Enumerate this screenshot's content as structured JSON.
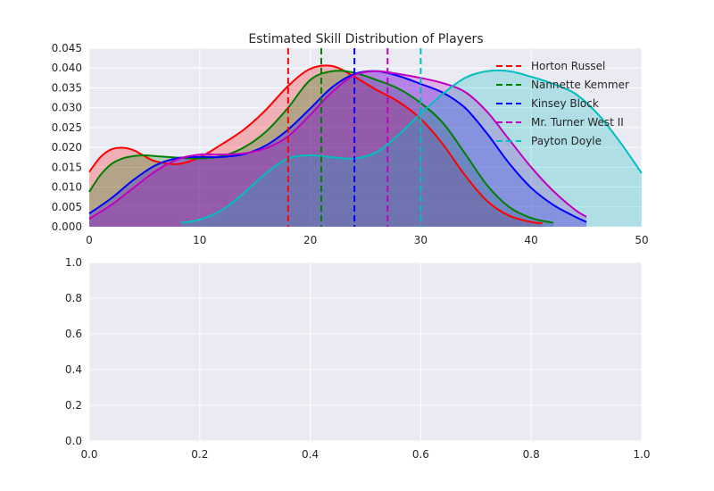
{
  "chart_data": [
    {
      "type": "area",
      "title": "Estimated Skill Distribution of Players",
      "xlabel": "",
      "ylabel": "",
      "xlim": [
        0,
        50
      ],
      "ylim": [
        0,
        0.045
      ],
      "grid": true,
      "legend_position": "top-right",
      "x_ticks": [
        0,
        10,
        20,
        30,
        40,
        50
      ],
      "x_tick_labels": [
        "0",
        "10",
        "20",
        "30",
        "40",
        "50"
      ],
      "y_ticks": [
        0,
        0.005,
        0.01,
        0.015,
        0.02,
        0.025,
        0.03,
        0.035,
        0.04,
        0.045
      ],
      "y_tick_labels": [
        "0.000",
        "0.005",
        "0.010",
        "0.015",
        "0.020",
        "0.025",
        "0.030",
        "0.035",
        "0.040",
        "0.045"
      ],
      "series": [
        {
          "name": "Horton Russel",
          "color": "#ff0000",
          "fill": "rgba(255,0,0,0.25)",
          "mean": 18,
          "x": [
            0,
            1,
            2,
            3,
            4,
            5,
            6,
            8,
            10,
            12,
            14,
            16,
            18,
            20,
            22,
            24,
            26,
            28,
            30,
            32,
            34,
            36,
            38,
            40,
            41
          ],
          "values": [
            0.0138,
            0.0175,
            0.0195,
            0.0199,
            0.0193,
            0.0178,
            0.0165,
            0.0158,
            0.0175,
            0.0208,
            0.0245,
            0.0295,
            0.0355,
            0.0398,
            0.0405,
            0.0378,
            0.0345,
            0.0315,
            0.0272,
            0.0208,
            0.013,
            0.0065,
            0.0028,
            0.0012,
            0.0009
          ]
        },
        {
          "name": "Nannette Kemmer",
          "color": "#007f00",
          "fill": "rgba(0,127,0,0.25)",
          "mean": 21,
          "x": [
            0,
            1,
            2,
            3,
            4,
            5,
            6,
            8,
            10,
            12,
            14,
            16,
            18,
            20,
            22,
            24,
            26,
            28,
            30,
            32,
            34,
            36,
            38,
            40,
            42
          ],
          "values": [
            0.0088,
            0.013,
            0.0158,
            0.0172,
            0.0178,
            0.018,
            0.0178,
            0.0174,
            0.0172,
            0.0178,
            0.02,
            0.024,
            0.03,
            0.037,
            0.0392,
            0.0388,
            0.037,
            0.0348,
            0.0312,
            0.0262,
            0.0185,
            0.0105,
            0.005,
            0.0022,
            0.001
          ]
        },
        {
          "name": "Kinsey Block",
          "color": "#0000ff",
          "fill": "rgba(0,0,255,0.25)",
          "mean": 24,
          "x": [
            0,
            2,
            4,
            6,
            8,
            10,
            12,
            14,
            16,
            18,
            20,
            22,
            24,
            26,
            28,
            30,
            32,
            34,
            36,
            38,
            40,
            42,
            44,
            45
          ],
          "values": [
            0.0033,
            0.0072,
            0.0118,
            0.0155,
            0.0173,
            0.0176,
            0.0176,
            0.0183,
            0.0205,
            0.0245,
            0.0298,
            0.0352,
            0.0385,
            0.0392,
            0.038,
            0.036,
            0.0338,
            0.03,
            0.0235,
            0.016,
            0.0098,
            0.0055,
            0.0025,
            0.0012
          ]
        },
        {
          "name": "Mr. Turner West II",
          "color": "#bf00bf",
          "fill": "rgba(191,0,191,0.25)",
          "mean": 27,
          "x": [
            0,
            2,
            4,
            6,
            8,
            10,
            12,
            14,
            16,
            18,
            20,
            22,
            24,
            26,
            28,
            30,
            32,
            34,
            36,
            38,
            40,
            42,
            44,
            45
          ],
          "values": [
            0.002,
            0.0055,
            0.0098,
            0.014,
            0.017,
            0.0182,
            0.0182,
            0.0185,
            0.0198,
            0.0228,
            0.0282,
            0.034,
            0.0382,
            0.0392,
            0.0385,
            0.0375,
            0.0362,
            0.034,
            0.029,
            0.022,
            0.015,
            0.009,
            0.0042,
            0.0025
          ]
        },
        {
          "name": "Payton Doyle",
          "color": "#00bfbf",
          "fill": "rgba(0,191,191,0.25)",
          "mean": 30,
          "x": [
            8.3,
            10,
            12,
            14,
            16,
            18,
            20,
            22,
            24,
            26,
            28,
            30,
            32,
            34,
            36,
            38,
            40,
            42,
            44,
            46,
            48,
            50
          ],
          "values": [
            0.001,
            0.0018,
            0.0042,
            0.0085,
            0.0135,
            0.0172,
            0.018,
            0.0175,
            0.0172,
            0.0188,
            0.0232,
            0.0285,
            0.0335,
            0.0375,
            0.0392,
            0.0392,
            0.0378,
            0.036,
            0.0335,
            0.0285,
            0.0215,
            0.0135
          ]
        }
      ]
    },
    {
      "type": "line",
      "title": "",
      "xlabel": "",
      "ylabel": "",
      "xlim": [
        0,
        1
      ],
      "ylim": [
        0,
        1
      ],
      "grid": true,
      "x_ticks": [
        0,
        0.2,
        0.4,
        0.6,
        0.8,
        1
      ],
      "x_tick_labels": [
        "0.0",
        "0.2",
        "0.4",
        "0.6",
        "0.8",
        "1.0"
      ],
      "y_ticks": [
        0,
        0.2,
        0.4,
        0.6,
        0.8,
        1
      ],
      "y_tick_labels": [
        "0.0",
        "0.2",
        "0.4",
        "0.6",
        "0.8",
        "1.0"
      ],
      "series": []
    }
  ],
  "style": {
    "axes_bg": "#eaeaf2",
    "grid_color": "#ffffff",
    "text_color": "#262626"
  }
}
